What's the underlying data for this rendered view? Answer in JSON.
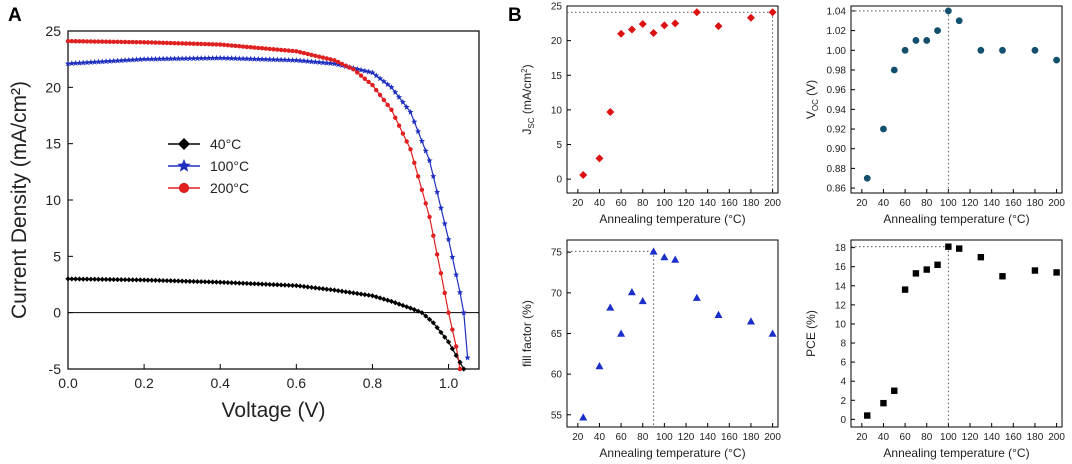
{
  "panel_labels": {
    "a": "A",
    "b": "B"
  },
  "chart_data": [
    {
      "type": "line",
      "panel": "A",
      "title": "",
      "xlabel": "Voltage (V)",
      "ylabel": "Current Density (mA/cm²)",
      "xlim": [
        0,
        1.08
      ],
      "ylim": [
        -5,
        25
      ],
      "xticks": [
        "0.0",
        "0.2",
        "0.4",
        "0.6",
        "0.8",
        "1.0"
      ],
      "yticks": [
        "-5",
        "0",
        "5",
        "10",
        "15",
        "20",
        "25"
      ],
      "legend_position": "center-left",
      "series": [
        {
          "name": "40°C",
          "color": "#000000",
          "marker": "diamond",
          "jsc": 3.0,
          "voc": 0.93,
          "x": [
            0.0,
            0.2,
            0.4,
            0.6,
            0.7,
            0.8,
            0.85,
            0.9,
            0.93,
            0.96,
            1.0,
            1.04
          ],
          "y": [
            3.0,
            2.9,
            2.7,
            2.4,
            2.0,
            1.5,
            1.0,
            0.4,
            0.0,
            -0.9,
            -2.6,
            -5.0
          ]
        },
        {
          "name": "100°C",
          "color": "#1f2fbf",
          "marker": "star",
          "jsc": 22.1,
          "voc": 1.04,
          "x": [
            0.0,
            0.2,
            0.4,
            0.6,
            0.7,
            0.8,
            0.85,
            0.9,
            0.95,
            1.0,
            1.03,
            1.04,
            1.05
          ],
          "y": [
            22.1,
            22.5,
            22.6,
            22.4,
            22.1,
            21.3,
            20.0,
            17.8,
            13.5,
            6.5,
            1.8,
            0.0,
            -4.0
          ]
        },
        {
          "name": "200°C",
          "color": "#e02020",
          "marker": "circle",
          "jsc": 24.1,
          "voc": 1.0,
          "x": [
            0.0,
            0.2,
            0.4,
            0.6,
            0.7,
            0.75,
            0.8,
            0.85,
            0.9,
            0.95,
            0.98,
            1.0,
            1.02,
            1.03
          ],
          "y": [
            24.1,
            24.0,
            23.8,
            23.2,
            22.4,
            21.6,
            20.2,
            18.0,
            14.5,
            8.5,
            3.5,
            0.0,
            -3.0,
            -5.0
          ]
        }
      ]
    },
    {
      "type": "scatter",
      "panel": "B-top-left",
      "xlabel": "Annealing temperature (°C)",
      "ylabel": "JSC (mA/cm²)",
      "ylabel_parts": {
        "main": "J",
        "sub": "SC",
        "unit": " (mA/cm",
        "sup": "2",
        "close": ")"
      },
      "xlim": [
        10,
        205
      ],
      "ylim": [
        -2,
        25
      ],
      "xticks": [
        "20",
        "40",
        "60",
        "80",
        "100",
        "120",
        "140",
        "160",
        "180",
        "200"
      ],
      "yticks": [
        "0",
        "5",
        "10",
        "15",
        "20",
        "25"
      ],
      "marker": "diamond",
      "color": "#dd1111",
      "x": [
        25,
        40,
        50,
        60,
        70,
        80,
        90,
        100,
        110,
        130,
        150,
        180,
        200
      ],
      "y": [
        0.6,
        3.0,
        9.7,
        21.0,
        21.6,
        22.4,
        21.1,
        22.2,
        22.5,
        24.1,
        22.1,
        23.3,
        24.1
      ],
      "highlight": {
        "x": 200,
        "y": 24.1
      }
    },
    {
      "type": "scatter",
      "panel": "B-top-right",
      "xlabel": "Annealing temperature (°C)",
      "ylabel": "VOC (V)",
      "ylabel_parts": {
        "main": "V",
        "sub": "OC",
        "unit": " (V)"
      },
      "xlim": [
        10,
        205
      ],
      "ylim": [
        0.855,
        1.045
      ],
      "xticks": [
        "20",
        "40",
        "60",
        "80",
        "100",
        "120",
        "140",
        "160",
        "180",
        "200"
      ],
      "yticks": [
        "0.86",
        "0.88",
        "0.90",
        "0.92",
        "0.94",
        "0.96",
        "0.98",
        "1.00",
        "1.02",
        "1.04"
      ],
      "marker": "circle",
      "color": "#12506e",
      "x": [
        25,
        40,
        50,
        60,
        70,
        80,
        90,
        100,
        110,
        130,
        150,
        180,
        200
      ],
      "y": [
        0.87,
        0.92,
        0.98,
        1.0,
        1.01,
        1.01,
        1.02,
        1.04,
        1.03,
        1.0,
        1.0,
        1.0,
        0.99
      ],
      "highlight": {
        "x": 100,
        "y": 1.04
      }
    },
    {
      "type": "scatter",
      "panel": "B-bottom-left",
      "xlabel": "Annealing temperature (°C)",
      "ylabel": "fill factor (%)",
      "xlim": [
        10,
        205
      ],
      "ylim": [
        53.5,
        76.5
      ],
      "xticks": [
        "20",
        "40",
        "60",
        "80",
        "100",
        "120",
        "140",
        "160",
        "180",
        "200"
      ],
      "yticks": [
        "55",
        "60",
        "65",
        "70",
        "75"
      ],
      "marker": "triangle",
      "color": "#1a2ec9",
      "x": [
        25,
        40,
        50,
        60,
        70,
        80,
        90,
        100,
        110,
        130,
        150,
        180,
        200
      ],
      "y": [
        54.7,
        61.0,
        68.2,
        65.0,
        70.1,
        69.0,
        75.1,
        74.4,
        74.1,
        69.4,
        67.3,
        66.5,
        65.0
      ],
      "highlight": {
        "x": 90,
        "y": 75.1
      }
    },
    {
      "type": "scatter",
      "panel": "B-bottom-right",
      "xlabel": "Annealing temperature (°C)",
      "ylabel": "PCE (%)",
      "xlim": [
        10,
        205
      ],
      "ylim": [
        -0.8,
        18.8
      ],
      "xticks": [
        "20",
        "40",
        "60",
        "80",
        "100",
        "120",
        "140",
        "160",
        "180",
        "200"
      ],
      "yticks": [
        "0",
        "2",
        "4",
        "6",
        "8",
        "10",
        "12",
        "14",
        "16",
        "18"
      ],
      "marker": "square",
      "color": "#000000",
      "x": [
        25,
        40,
        50,
        60,
        70,
        80,
        90,
        100,
        110,
        130,
        150,
        180,
        200
      ],
      "y": [
        0.4,
        1.7,
        3.0,
        13.6,
        15.3,
        15.7,
        16.2,
        18.1,
        17.9,
        17.0,
        15.0,
        15.6,
        15.4
      ],
      "highlight": {
        "x": 100,
        "y": 18.1
      }
    }
  ]
}
